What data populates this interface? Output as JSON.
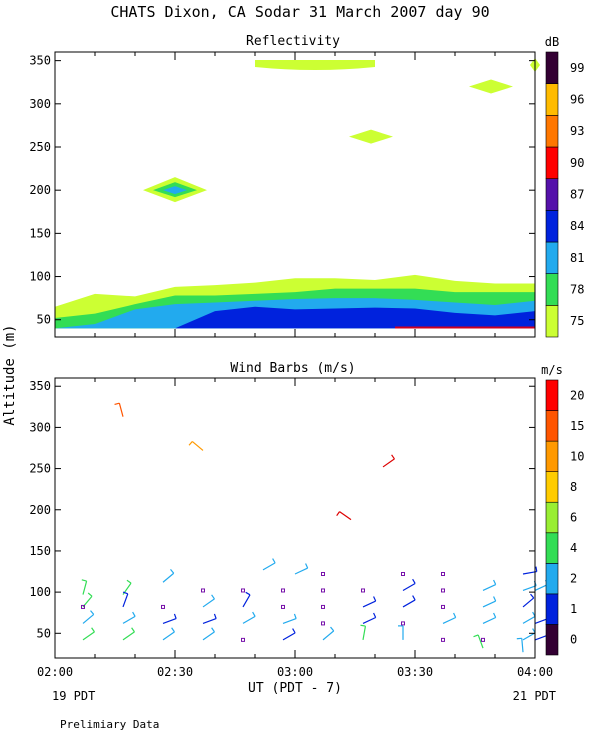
{
  "header": {
    "title": "CHATS Dixon, CA  Sodar  31 March 2007  day  90",
    "y_axis_label": "Altitude (m)",
    "x_axis_label": "UT  (PDT - 7)",
    "left_note": "19 PDT",
    "right_note": "21 PDT",
    "footer": "Prelimiary Data"
  },
  "chart_data": [
    {
      "type": "area",
      "title": "Reflectivity",
      "xlabel": "UT  (PDT - 7)",
      "ylabel": "Altitude (m)",
      "x_ticks": [
        "02:00",
        "02:30",
        "03:00",
        "03:30",
        "04:00"
      ],
      "xlim": [
        "02:00",
        "04:00"
      ],
      "y_ticks": [
        50,
        100,
        150,
        200,
        250,
        300,
        350
      ],
      "ylim": [
        30,
        360
      ],
      "colorbar": {
        "unit": "dB",
        "labels": [
          "75",
          "78",
          "81",
          "84",
          "87",
          "90",
          "93",
          "96",
          "99"
        ],
        "colors": [
          "#ccff33",
          "#33dd55",
          "#22aaee",
          "#0022dd",
          "#5511aa",
          "#ff0000",
          "#ff7700",
          "#ffbb00",
          "#330033"
        ]
      },
      "bands": [
        {
          "level": 75,
          "color": "#ccff33",
          "x": [
            "02:00",
            "02:10",
            "02:20",
            "02:30",
            "02:40",
            "02:50",
            "03:00",
            "03:10",
            "03:20",
            "03:30",
            "03:40",
            "03:50",
            "04:00"
          ],
          "top": [
            65,
            80,
            77,
            88,
            90,
            93,
            98,
            98,
            96,
            102,
            95,
            92,
            92
          ]
        },
        {
          "level": 78,
          "color": "#33dd55",
          "x": [
            "02:00",
            "02:10",
            "02:20",
            "02:30",
            "02:40",
            "02:50",
            "03:00",
            "03:10",
            "03:20",
            "03:30",
            "03:40",
            "03:50",
            "04:00"
          ],
          "top": [
            52,
            57,
            68,
            78,
            78,
            80,
            82,
            86,
            86,
            86,
            82,
            82,
            82
          ]
        },
        {
          "level": 81,
          "color": "#22aaee",
          "x": [
            "02:00",
            "02:10",
            "02:20",
            "02:30",
            "02:40",
            "02:50",
            "03:00",
            "03:10",
            "03:20",
            "03:30",
            "03:40",
            "03:50",
            "04:00"
          ],
          "top": [
            40,
            45,
            62,
            68,
            70,
            72,
            74,
            75,
            75,
            73,
            70,
            67,
            72
          ]
        },
        {
          "level": 84,
          "color": "#0022dd",
          "x": [
            "02:30",
            "02:40",
            "02:50",
            "03:00",
            "03:10",
            "03:20",
            "03:30",
            "03:40",
            "03:50",
            "04:00"
          ],
          "top": [
            40,
            60,
            65,
            62,
            63,
            64,
            63,
            58,
            55,
            60
          ]
        }
      ],
      "patches": [
        {
          "level": 75,
          "x_from": "02:50",
          "x_to": "03:20",
          "alt": 345
        },
        {
          "level": 75,
          "x_center": "03:19",
          "alt": 262
        },
        {
          "level": 75,
          "x_center": "03:49",
          "alt": 320
        },
        {
          "level": 75,
          "x_center": "04:00",
          "alt": 345
        },
        {
          "level": 81,
          "x_center": "02:30",
          "alt": 200
        }
      ]
    },
    {
      "type": "scatter",
      "title": "Wind Barbs (m/s)",
      "xlabel": "UT  (PDT - 7)",
      "ylabel": "Altitude (m)",
      "x_ticks": [
        "02:00",
        "02:30",
        "03:00",
        "03:30",
        "04:00"
      ],
      "xlim": [
        "02:00",
        "04:00"
      ],
      "y_ticks": [
        50,
        100,
        150,
        200,
        250,
        300,
        350
      ],
      "ylim": [
        20,
        360
      ],
      "colorbar": {
        "unit": "m/s",
        "labels": [
          "0",
          "1",
          "2",
          "4",
          "6",
          "8",
          "10",
          "15",
          "20"
        ],
        "colors": [
          "#330033",
          "#0022dd",
          "#22aaee",
          "#33dd55",
          "#99ee33",
          "#ffcc00",
          "#ff9900",
          "#ff5500",
          "#ff0000"
        ]
      },
      "barbs": [
        {
          "t": "02:07",
          "alt": 97,
          "c": "#33dd55",
          "a": -75
        },
        {
          "t": "02:07",
          "alt": 82,
          "c": "#33dd55",
          "a": -50
        },
        {
          "t": "02:07",
          "alt": 62,
          "c": "#22aaee",
          "a": -40
        },
        {
          "t": "02:07",
          "alt": 42,
          "c": "#33dd55",
          "a": -35
        },
        {
          "t": "02:17",
          "alt": 97,
          "c": "#33dd55",
          "a": -55
        },
        {
          "t": "02:17",
          "alt": 82,
          "c": "#0022dd",
          "a": -70
        },
        {
          "t": "02:17",
          "alt": 62,
          "c": "#22aaee",
          "a": -30
        },
        {
          "t": "02:17",
          "alt": 42,
          "c": "#33dd55",
          "a": -35
        },
        {
          "t": "02:27",
          "alt": 112,
          "c": "#22aaee",
          "a": -40
        },
        {
          "t": "02:27",
          "alt": 62,
          "c": "#0022dd",
          "a": -20
        },
        {
          "t": "02:27",
          "alt": 42,
          "c": "#22aaee",
          "a": -35
        },
        {
          "t": "02:37",
          "alt": 82,
          "c": "#22aaee",
          "a": -35
        },
        {
          "t": "02:37",
          "alt": 62,
          "c": "#0022dd",
          "a": -20
        },
        {
          "t": "02:37",
          "alt": 42,
          "c": "#22aaee",
          "a": -35
        },
        {
          "t": "02:47",
          "alt": 82,
          "c": "#0022dd",
          "a": -60
        },
        {
          "t": "02:47",
          "alt": 62,
          "c": "#22aaee",
          "a": -30
        },
        {
          "t": "02:52",
          "alt": 127,
          "c": "#22aaee",
          "a": -30
        },
        {
          "t": "02:57",
          "alt": 42,
          "c": "#0022dd",
          "a": -30
        },
        {
          "t": "02:57",
          "alt": 62,
          "c": "#22aaee",
          "a": -20
        },
        {
          "t": "03:00",
          "alt": 122,
          "c": "#22aaee",
          "a": -25
        },
        {
          "t": "03:07",
          "alt": 42,
          "c": "#22aaee",
          "a": -40
        },
        {
          "t": "03:17",
          "alt": 82,
          "c": "#0022dd",
          "a": -25
        },
        {
          "t": "03:17",
          "alt": 62,
          "c": "#0022dd",
          "a": -25
        },
        {
          "t": "03:17",
          "alt": 42,
          "c": "#33dd55",
          "a": -80
        },
        {
          "t": "03:27",
          "alt": 102,
          "c": "#0022dd",
          "a": -30
        },
        {
          "t": "03:27",
          "alt": 82,
          "c": "#0022dd",
          "a": -30
        },
        {
          "t": "03:27",
          "alt": 42,
          "c": "#22aaee",
          "a": -90
        },
        {
          "t": "03:37",
          "alt": 62,
          "c": "#22aaee",
          "a": -25
        },
        {
          "t": "03:47",
          "alt": 102,
          "c": "#22aaee",
          "a": -25
        },
        {
          "t": "03:47",
          "alt": 82,
          "c": "#22aaee",
          "a": -25
        },
        {
          "t": "03:47",
          "alt": 62,
          "c": "#22aaee",
          "a": -25
        },
        {
          "t": "03:47",
          "alt": 32,
          "c": "#33dd55",
          "a": -110
        },
        {
          "t": "03:57",
          "alt": 122,
          "c": "#0022dd",
          "a": -10
        },
        {
          "t": "03:57",
          "alt": 102,
          "c": "#22aaee",
          "a": -20
        },
        {
          "t": "03:57",
          "alt": 82,
          "c": "#0022dd",
          "a": -40
        },
        {
          "t": "03:57",
          "alt": 62,
          "c": "#22aaee",
          "a": -30
        },
        {
          "t": "03:57",
          "alt": 42,
          "c": "#22aaee",
          "a": -30
        },
        {
          "t": "03:57",
          "alt": 27,
          "c": "#22aaee",
          "a": -95
        },
        {
          "t": "04:00",
          "alt": 102,
          "c": "#22aaee",
          "a": -25
        },
        {
          "t": "04:00",
          "alt": 62,
          "c": "#0022dd",
          "a": -20
        },
        {
          "t": "04:00",
          "alt": 42,
          "c": "#0022dd",
          "a": -20
        },
        {
          "t": "02:17",
          "alt": 313,
          "c": "#ff5500",
          "a": -105
        },
        {
          "t": "02:37",
          "alt": 272,
          "c": "#ff9900",
          "a": -140
        },
        {
          "t": "03:22",
          "alt": 252,
          "c": "#dd0000",
          "a": -35
        },
        {
          "t": "03:14",
          "alt": 188,
          "c": "#dd0000",
          "a": -145
        }
      ],
      "calm_points": [
        {
          "t": "02:07",
          "alt": 82
        },
        {
          "t": "02:27",
          "alt": 82
        },
        {
          "t": "02:37",
          "alt": 102
        },
        {
          "t": "02:47",
          "alt": 102
        },
        {
          "t": "02:47",
          "alt": 42
        },
        {
          "t": "02:57",
          "alt": 102
        },
        {
          "t": "02:57",
          "alt": 82
        },
        {
          "t": "03:07",
          "alt": 122
        },
        {
          "t": "03:07",
          "alt": 102
        },
        {
          "t": "03:07",
          "alt": 82
        },
        {
          "t": "03:07",
          "alt": 62
        },
        {
          "t": "03:17",
          "alt": 102
        },
        {
          "t": "03:27",
          "alt": 122
        },
        {
          "t": "03:27",
          "alt": 62
        },
        {
          "t": "03:37",
          "alt": 122
        },
        {
          "t": "03:37",
          "alt": 102
        },
        {
          "t": "03:37",
          "alt": 82
        },
        {
          "t": "03:37",
          "alt": 42
        },
        {
          "t": "03:47",
          "alt": 42
        }
      ]
    }
  ]
}
